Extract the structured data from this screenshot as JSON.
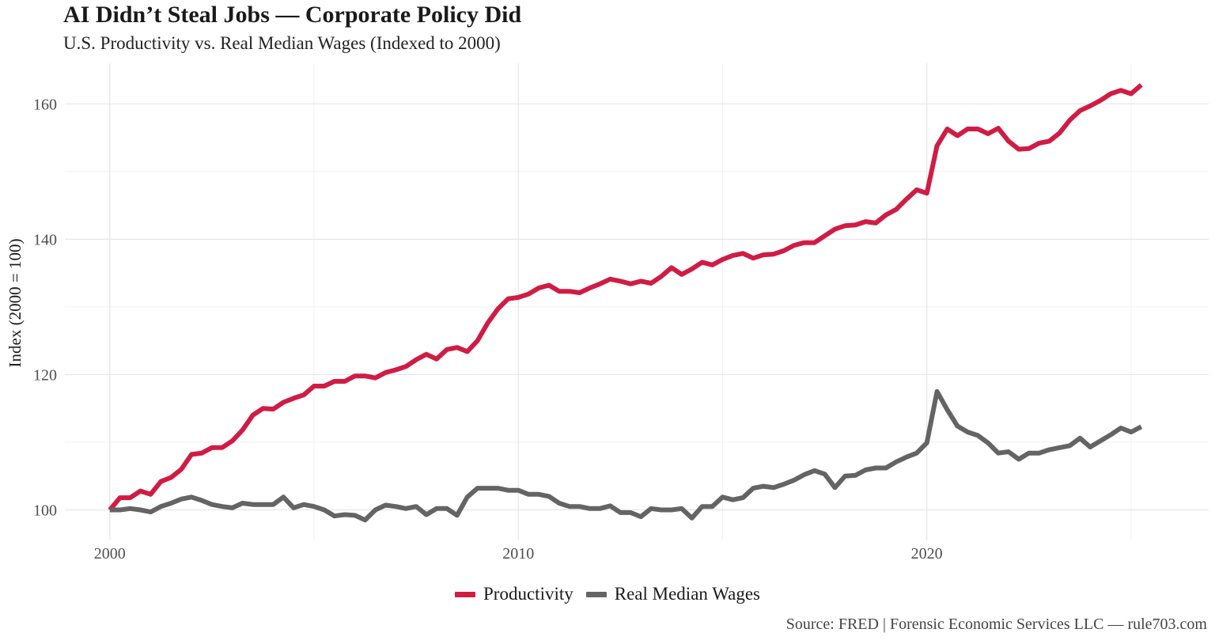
{
  "title": "AI Didn’t Steal Jobs — Corporate Policy Did",
  "subtitle": "U.S. Productivity vs. Real Median Wages (Indexed to 2000)",
  "source": "Source: FRED | Forensic Economic Services LLC — rule703.com",
  "chart_data": {
    "type": "line",
    "title": "AI Didn’t Steal Jobs — Corporate Policy Did",
    "subtitle": "U.S. Productivity vs. Real Median Wages (Indexed to 2000)",
    "xlabel": "",
    "ylabel": "Index (2000 = 100)",
    "xlim": [
      1998921,
      2026.9
    ],
    "ylim": [
      95.5,
      166
    ],
    "x_ticks": [
      2000,
      2010,
      2020
    ],
    "x_tick_labels": [
      "2000",
      "2010",
      "2020"
    ],
    "y_ticks": [
      100,
      120,
      140,
      160
    ],
    "y_tick_labels": [
      "100",
      "120",
      "140",
      "160"
    ],
    "grid": true,
    "legend_position": "bottom",
    "series": [
      {
        "name": "Productivity",
        "color": "#d01c44",
        "x": [
          2000.0,
          2000.25,
          2000.5,
          2000.75,
          2001.0,
          2001.25,
          2001.5,
          2001.75,
          2002.0,
          2002.25,
          2002.5,
          2002.75,
          2003.0,
          2003.25,
          2003.5,
          2003.75,
          2004.0,
          2004.25,
          2004.5,
          2004.75,
          2005.0,
          2005.25,
          2005.5,
          2005.75,
          2006.0,
          2006.25,
          2006.5,
          2006.75,
          2007.0,
          2007.25,
          2007.5,
          2007.75,
          2008.0,
          2008.25,
          2008.5,
          2008.75,
          2009.0,
          2009.25,
          2009.5,
          2009.75,
          2010.0,
          2010.25,
          2010.5,
          2010.75,
          2011.0,
          2011.25,
          2011.5,
          2011.75,
          2012.0,
          2012.25,
          2012.5,
          2012.75,
          2013.0,
          2013.25,
          2013.5,
          2013.75,
          2014.0,
          2014.25,
          2014.5,
          2014.75,
          2015.0,
          2015.25,
          2015.5,
          2015.75,
          2016.0,
          2016.25,
          2016.5,
          2016.75,
          2017.0,
          2017.25,
          2017.5,
          2017.75,
          2018.0,
          2018.25,
          2018.5,
          2018.75,
          2019.0,
          2019.25,
          2019.5,
          2019.75,
          2020.0,
          2020.25,
          2020.5,
          2020.75,
          2021.0,
          2021.25,
          2021.5,
          2021.75,
          2022.0,
          2022.25,
          2022.5,
          2022.75,
          2023.0,
          2023.25,
          2023.5,
          2023.75,
          2024.0,
          2024.25,
          2024.5,
          2024.75,
          2025.0,
          2025.25
        ],
        "values": [
          100.0,
          101.8,
          101.8,
          102.8,
          102.3,
          104.2,
          104.8,
          106.0,
          108.2,
          108.4,
          109.2,
          109.2,
          110.2,
          111.8,
          114.0,
          115.0,
          114.9,
          115.9,
          116.5,
          117.0,
          118.3,
          118.3,
          119.0,
          119.0,
          119.8,
          119.8,
          119.5,
          120.3,
          120.7,
          121.2,
          122.2,
          123.0,
          122.3,
          123.7,
          124.0,
          123.4,
          125.0,
          127.6,
          129.7,
          131.2,
          131.4,
          131.9,
          132.8,
          133.2,
          132.3,
          132.3,
          132.1,
          132.8,
          133.4,
          134.1,
          133.8,
          133.4,
          133.8,
          133.5,
          134.5,
          135.8,
          134.8,
          135.6,
          136.6,
          136.2,
          137.0,
          137.6,
          137.9,
          137.2,
          137.7,
          137.8,
          138.3,
          139.1,
          139.5,
          139.5,
          140.5,
          141.5,
          142.0,
          142.1,
          142.6,
          142.4,
          143.6,
          144.4,
          145.9,
          147.3,
          146.8,
          153.8,
          156.3,
          155.3,
          156.3,
          156.3,
          155.6,
          156.4,
          154.5,
          153.3,
          153.4,
          154.2,
          154.5,
          155.7,
          157.6,
          159.0,
          159.7,
          160.5,
          161.5,
          162.0,
          161.5,
          162.8
        ]
      },
      {
        "name": "Real Median Wages",
        "color": "#646464",
        "x": [
          2000.0,
          2000.25,
          2000.5,
          2000.75,
          2001.0,
          2001.25,
          2001.5,
          2001.75,
          2002.0,
          2002.25,
          2002.5,
          2002.75,
          2003.0,
          2003.25,
          2003.5,
          2003.75,
          2004.0,
          2004.25,
          2004.5,
          2004.75,
          2005.0,
          2005.25,
          2005.5,
          2005.75,
          2006.0,
          2006.25,
          2006.5,
          2006.75,
          2007.0,
          2007.25,
          2007.5,
          2007.75,
          2008.0,
          2008.25,
          2008.5,
          2008.75,
          2009.0,
          2009.25,
          2009.5,
          2009.75,
          2010.0,
          2010.25,
          2010.5,
          2010.75,
          2011.0,
          2011.25,
          2011.5,
          2011.75,
          2012.0,
          2012.25,
          2012.5,
          2012.75,
          2013.0,
          2013.25,
          2013.5,
          2013.75,
          2014.0,
          2014.25,
          2014.5,
          2014.75,
          2015.0,
          2015.25,
          2015.5,
          2015.75,
          2016.0,
          2016.25,
          2016.5,
          2016.75,
          2017.0,
          2017.25,
          2017.5,
          2017.75,
          2018.0,
          2018.25,
          2018.5,
          2018.75,
          2019.0,
          2019.25,
          2019.5,
          2019.75,
          2020.0,
          2020.25,
          2020.5,
          2020.75,
          2021.0,
          2021.25,
          2021.5,
          2021.75,
          2022.0,
          2022.25,
          2022.5,
          2022.75,
          2023.0,
          2023.25,
          2023.5,
          2023.75,
          2024.0,
          2024.25,
          2024.5,
          2024.75,
          2025.0,
          2025.25
        ],
        "values": [
          100.0,
          100.0,
          100.2,
          100.0,
          99.7,
          100.5,
          101.0,
          101.6,
          101.9,
          101.4,
          100.8,
          100.5,
          100.3,
          101.0,
          100.8,
          100.8,
          100.8,
          101.9,
          100.3,
          100.8,
          100.5,
          100.0,
          99.1,
          99.3,
          99.2,
          98.5,
          100.0,
          100.7,
          100.5,
          100.2,
          100.5,
          99.3,
          100.2,
          100.2,
          99.2,
          101.9,
          103.2,
          103.2,
          103.2,
          102.9,
          102.9,
          102.3,
          102.3,
          102.0,
          101.0,
          100.5,
          100.5,
          100.2,
          100.2,
          100.6,
          99.6,
          99.6,
          99.0,
          100.2,
          100.0,
          100.0,
          100.2,
          98.8,
          100.5,
          100.5,
          101.9,
          101.5,
          101.8,
          103.2,
          103.5,
          103.3,
          103.8,
          104.4,
          105.2,
          105.8,
          105.3,
          103.3,
          105.0,
          105.1,
          105.9,
          106.2,
          106.2,
          107.1,
          107.8,
          108.4,
          109.9,
          117.5,
          114.8,
          112.4,
          111.5,
          111.0,
          109.9,
          108.4,
          108.6,
          107.5,
          108.4,
          108.4,
          108.9,
          109.2,
          109.5,
          110.6,
          109.3,
          110.2,
          111.1,
          112.1,
          111.5,
          112.3
        ]
      }
    ]
  }
}
